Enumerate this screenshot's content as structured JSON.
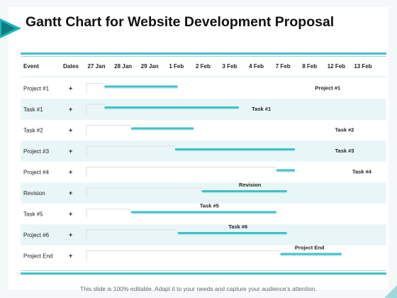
{
  "title": "Gantt Chart for Website Development Proposal",
  "footer": "This slide is 100% editable. Adapt it to your needs and capture your  audience’s attention.",
  "colors": {
    "accent": "#3fc1c9",
    "bar": "#3fc1c9",
    "row_band": "#e9f6f7",
    "connector": "#d6d6d6"
  },
  "chart_data": {
    "type": "gantt",
    "columns": {
      "event": "Event",
      "dates": "Dates"
    },
    "date_ticks": [
      "27 Jan",
      "28 Jan",
      "29 Jan",
      "1 Feb",
      "2 Feb",
      "3 Feb",
      "4 Feb",
      "7 Feb",
      "8 Feb",
      "12 Feb",
      "13 Feb"
    ],
    "tasks": [
      {
        "event": "Project #1",
        "dates": "+",
        "start": 0.3,
        "end": 3.05,
        "label": "Project #1"
      },
      {
        "event": "Task #1",
        "dates": "+",
        "start": 0.3,
        "end": 5.35,
        "label": "Task #1"
      },
      {
        "event": "Task #2",
        "dates": "+",
        "start": 1.3,
        "end": 3.65,
        "label": "Task #2"
      },
      {
        "event": "Project #3",
        "dates": "+",
        "start": 2.95,
        "end": 7.45,
        "label": "Task #3"
      },
      {
        "event": "Project #4",
        "dates": "+",
        "start": 6.75,
        "end": 7.45,
        "label": "Task #4"
      },
      {
        "event": "Revision",
        "dates": "+",
        "start": 3.95,
        "end": 7.15,
        "label": "Revision"
      },
      {
        "event": "Task #5",
        "dates": "+",
        "start": 1.3,
        "end": 6.75,
        "label": "Task #5"
      },
      {
        "event": "Project #6",
        "dates": "+",
        "start": 3.05,
        "end": 7.15,
        "label": "Task #6"
      },
      {
        "event": "Project End",
        "dates": "+",
        "start": 6.9,
        "end": 9.2,
        "label": "Project End"
      }
    ]
  }
}
